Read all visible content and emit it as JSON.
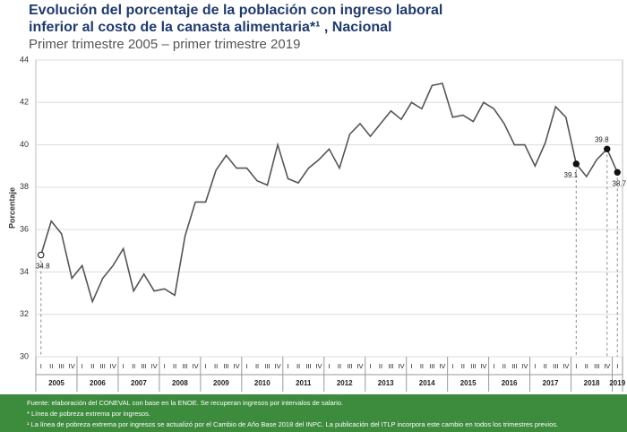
{
  "chart_data": {
    "type": "line",
    "title": [
      "Evolución del porcentaje de la población con ingreso laboral",
      "inferior al costo de la canasta alimentaria*¹ , Nacional"
    ],
    "subtitle": "Primer trimestre 2005 – primer trimestre 2019",
    "y_label": "Porcentaje",
    "categories": [
      "I",
      "II",
      "III",
      "IV",
      "I",
      "II",
      "III",
      "IV",
      "I",
      "II",
      "III",
      "IV",
      "I",
      "II",
      "III",
      "IV",
      "I",
      "II",
      "III",
      "IV",
      "I",
      "II",
      "III",
      "IV",
      "I",
      "II",
      "III",
      "IV",
      "I",
      "II",
      "III",
      "IV",
      "I",
      "II",
      "III",
      "IV",
      "I",
      "II",
      "III",
      "IV",
      "I",
      "II",
      "III",
      "IV",
      "I",
      "II",
      "III",
      "IV",
      "I",
      "II",
      "III",
      "IV",
      "I",
      "II",
      "III",
      "IV",
      "I"
    ],
    "years": [
      "2005",
      "2006",
      "2007",
      "2008",
      "2009",
      "2010",
      "2011",
      "2012",
      "2013",
      "2014",
      "2015",
      "2016",
      "2017",
      "2018",
      "2019"
    ],
    "values": [
      34.8,
      36.4,
      35.8,
      33.7,
      34.3,
      32.6,
      33.7,
      34.3,
      35.1,
      33.1,
      33.9,
      33.1,
      33.2,
      32.9,
      35.7,
      37.3,
      37.3,
      38.8,
      39.5,
      38.9,
      38.9,
      38.3,
      38.1,
      40.0,
      38.4,
      38.2,
      38.9,
      39.3,
      39.8,
      38.9,
      40.5,
      41.0,
      40.4,
      41.0,
      41.6,
      41.2,
      42.0,
      41.7,
      42.8,
      42.9,
      41.3,
      41.4,
      41.1,
      42.0,
      41.7,
      41.0,
      40.0,
      40.0,
      39.0,
      40.1,
      41.8,
      41.3,
      39.1,
      38.5,
      39.3,
      39.8,
      38.7
    ],
    "value_labels": [
      "34.8",
      null,
      null,
      null,
      null,
      null,
      null,
      null,
      null,
      null,
      null,
      null,
      null,
      null,
      null,
      null,
      null,
      null,
      null,
      null,
      null,
      null,
      null,
      null,
      null,
      null,
      null,
      null,
      null,
      null,
      null,
      null,
      null,
      null,
      null,
      null,
      null,
      null,
      null,
      null,
      null,
      null,
      null,
      null,
      null,
      null,
      null,
      null,
      null,
      null,
      null,
      null,
      "39.1",
      null,
      null,
      "39.8",
      "38.7"
    ],
    "color": "#555555",
    "ylim": [
      30,
      44
    ],
    "yticks": [
      30,
      32,
      34,
      36,
      38,
      40,
      42,
      44
    ],
    "grid": true
  },
  "footer": [
    "Fuente: elaboración del CONEVAL con base en la ENOE. Se recuperan ingresos por intervalos de salario.",
    "* Línea de pobreza extrema por ingresos.",
    "¹ La línea de pobreza extrema por ingresos se actualizó por el Cambio de Año Base 2018 del INPC. La publicación del ITLP incorpora este cambio en todos los trimestres previos."
  ]
}
